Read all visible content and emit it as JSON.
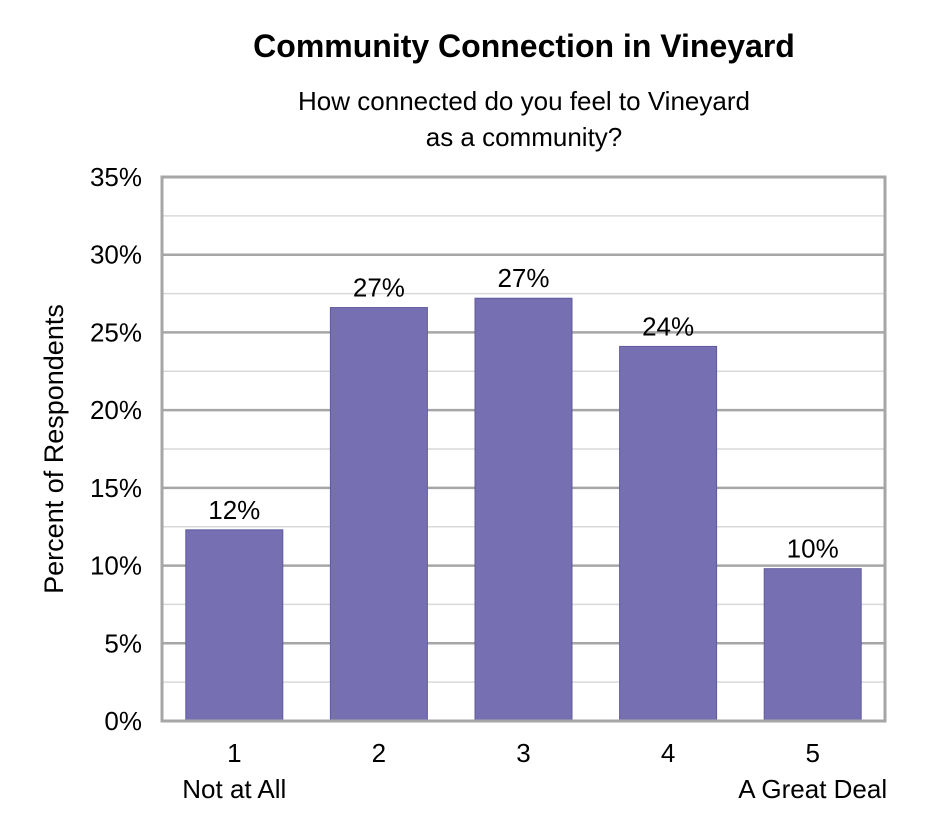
{
  "chart_data": {
    "type": "bar",
    "title": "Community Connection in Vineyard",
    "subtitle_lines": [
      "How connected do you feel to Vineyard",
      "as a community?"
    ],
    "ylabel": "Percent of Respondents",
    "xlabel": "",
    "categories": [
      "1",
      "2",
      "3",
      "4",
      "5"
    ],
    "category_sublabels": [
      "Not at All",
      "",
      "",
      "",
      "A Great Deal"
    ],
    "values": [
      12.3,
      26.6,
      27.2,
      24.1,
      9.8
    ],
    "data_labels": [
      "12%",
      "27%",
      "27%",
      "24%",
      "10%"
    ],
    "ylim": [
      0,
      35
    ],
    "yticks": [
      0,
      5,
      10,
      15,
      20,
      25,
      30,
      35
    ],
    "ytick_labels": [
      "0%",
      "5%",
      "10%",
      "15%",
      "20%",
      "25%",
      "30%",
      "35%"
    ],
    "minor_grid_step": 2.5,
    "grid": true,
    "bar_color": "#7670b2",
    "legend": "none"
  }
}
